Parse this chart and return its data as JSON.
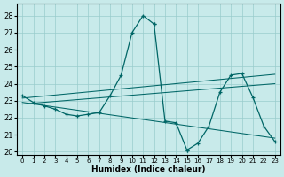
{
  "bg_color": "#c8eaea",
  "grid_color": "#99cccc",
  "line_color": "#006666",
  "xlabel": "Humidex (Indice chaleur)",
  "xlim": [
    -0.5,
    23.5
  ],
  "ylim": [
    19.8,
    28.7
  ],
  "yticks": [
    20,
    21,
    22,
    23,
    24,
    25,
    26,
    27,
    28
  ],
  "xticks": [
    0,
    1,
    2,
    3,
    4,
    5,
    6,
    7,
    8,
    9,
    10,
    11,
    12,
    13,
    14,
    15,
    16,
    17,
    18,
    19,
    20,
    21,
    22,
    23
  ],
  "curve1_x": [
    0,
    1,
    2,
    3,
    4,
    5,
    6,
    7,
    8,
    9,
    10,
    11,
    12,
    13,
    14,
    15,
    16,
    17,
    18,
    19,
    20,
    21
  ],
  "curve1_y": [
    23.3,
    22.9,
    22.7,
    22.5,
    22.2,
    22.1,
    22.2,
    22.3,
    23.3,
    24.5,
    27.0,
    28.0,
    27.5,
    21.8,
    21.7,
    20.1,
    20.5,
    21.5,
    23.0,
    24.5,
    24.6,
    23.2
  ],
  "curve2_x": [
    0,
    1,
    2,
    3,
    4,
    5,
    6,
    7,
    8,
    9,
    10,
    11,
    12,
    13,
    14,
    15,
    16,
    17,
    18,
    19,
    20,
    21,
    22,
    23
  ],
  "curve2_y": [
    23.3,
    22.9,
    22.7,
    22.5,
    22.2,
    22.1,
    22.2,
    22.3,
    23.3,
    24.5,
    27.0,
    28.0,
    27.5,
    21.8,
    21.7,
    20.1,
    20.5,
    21.5,
    23.5,
    24.5,
    24.6,
    23.2,
    21.5,
    20.6
  ],
  "trend1_x": [
    0,
    23
  ],
  "trend1_y": [
    23.15,
    24.55
  ],
  "trend2_x": [
    0,
    23
  ],
  "trend2_y": [
    22.8,
    24.0
  ],
  "trend3_x": [
    0,
    23
  ],
  "trend3_y": [
    22.9,
    20.8
  ]
}
